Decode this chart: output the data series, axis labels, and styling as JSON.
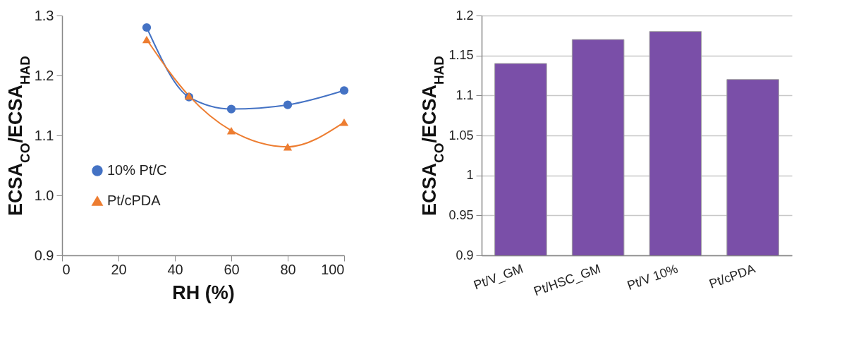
{
  "chart_data": [
    {
      "type": "line",
      "xlabel": "RH (%)",
      "ylabel": "ECSA$_{CO}$/ECSA$_{HAD}$",
      "xlim": [
        0,
        100
      ],
      "xticks": [
        0,
        20,
        40,
        60,
        80,
        100
      ],
      "ylim": [
        0.9,
        1.3
      ],
      "yticks": [
        0.9,
        {
          "value": 1,
          "label": "1.0"
        },
        1.1,
        1.2,
        1.3
      ],
      "grid": false,
      "legend": "left",
      "series": [
        {
          "name": "10% Pt/C",
          "color": "#4472c4",
          "marker": "circle",
          "x": [
            30,
            45,
            60,
            80,
            100
          ],
          "values": [
            1.28,
            1.164,
            1.144,
            1.151,
            1.175
          ]
        },
        {
          "name": "Pt/cPDA",
          "color": "#ed7d31",
          "marker": "triangle",
          "x": [
            30,
            45,
            60,
            80,
            100
          ],
          "values": [
            1.26,
            1.166,
            1.108,
            1.081,
            1.122
          ]
        }
      ]
    },
    {
      "type": "bar",
      "ylabel": "ECSA$_{CO}$/ECSA$_{HAD}$",
      "categories": [
        "Pt/V_GM",
        "Pt/HSC_GM",
        "Pt/V 10%",
        "Pt/cPDA"
      ],
      "values": [
        1.14,
        1.17,
        1.18,
        1.12
      ],
      "color": "#7a4fa8",
      "ylim": [
        0.9,
        1.2
      ],
      "yticks": [
        0.9,
        0.95,
        1,
        1.05,
        1.1,
        1.15,
        1.2
      ],
      "grid": "y"
    }
  ]
}
